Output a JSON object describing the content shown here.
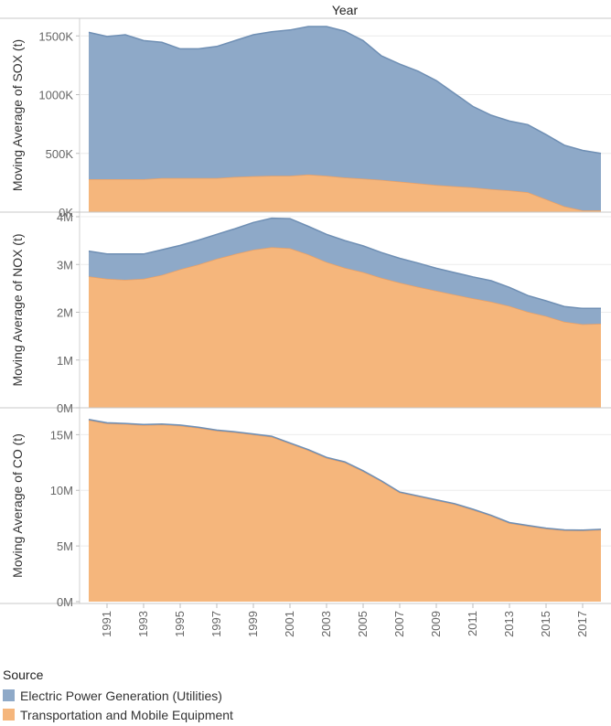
{
  "chart_data": {
    "type": "area",
    "column_title": "Year",
    "x": [
      1990,
      1991,
      1992,
      1993,
      1994,
      1995,
      1996,
      1997,
      1998,
      1999,
      2000,
      2001,
      2002,
      2003,
      2004,
      2005,
      2006,
      2007,
      2008,
      2009,
      2010,
      2011,
      2012,
      2013,
      2014,
      2015,
      2016,
      2017,
      2018
    ],
    "x_tick_labels": [
      "1991",
      "1993",
      "1995",
      "1997",
      "1999",
      "2001",
      "2003",
      "2005",
      "2007",
      "2009",
      "2011",
      "2013",
      "2015",
      "2017"
    ],
    "legend": {
      "title": "Source",
      "placement": "bottom-left",
      "entries": [
        {
          "name": "Electric Power Generation (Utilities)",
          "color": "#8ea9c8"
        },
        {
          "name": "Transportation and Mobile Equipment",
          "color": "#f5b67c"
        }
      ]
    },
    "stacked": true,
    "grid": true,
    "panels": [
      {
        "ylabel": "Moving Average of SOX (t)",
        "ylim": [
          0,
          1650000
        ],
        "y_ticks": [
          0,
          500000,
          1000000,
          1500000
        ],
        "y_tick_labels": [
          "0K",
          "500K",
          "1000K",
          "1500K"
        ],
        "series": [
          {
            "name": "Transportation and Mobile Equipment",
            "values": [
              280000,
              280000,
              280000,
              280000,
              290000,
              290000,
              290000,
              290000,
              300000,
              305000,
              310000,
              310000,
              320000,
              310000,
              295000,
              285000,
              275000,
              260000,
              245000,
              230000,
              220000,
              210000,
              195000,
              185000,
              170000,
              110000,
              50000,
              15000,
              15000
            ]
          },
          {
            "name": "Electric Power Generation (Utilities)",
            "values": [
              1250000,
              1215000,
              1230000,
              1180000,
              1155000,
              1100000,
              1100000,
              1120000,
              1160000,
              1205000,
              1225000,
              1240000,
              1260000,
              1270000,
              1245000,
              1175000,
              1055000,
              1000000,
              955000,
              890000,
              790000,
              690000,
              630000,
              590000,
              575000,
              550000,
              520000,
              510000,
              485000
            ]
          }
        ]
      },
      {
        "ylabel": "Moving Average of NOX (t)",
        "ylim": [
          0,
          4000000
        ],
        "y_ticks": [
          0,
          1000000,
          2000000,
          3000000,
          4000000
        ],
        "y_tick_labels": [
          "0M",
          "1M",
          "2M",
          "3M",
          "4M"
        ],
        "series": [
          {
            "name": "Transportation and Mobile Equipment",
            "values": [
              2750000,
              2700000,
              2680000,
              2700000,
              2780000,
              2900000,
              3000000,
              3120000,
              3220000,
              3310000,
              3360000,
              3340000,
              3210000,
              3050000,
              2930000,
              2840000,
              2720000,
              2620000,
              2530000,
              2450000,
              2370000,
              2290000,
              2220000,
              2130000,
              2010000,
              1920000,
              1800000,
              1750000,
              1760000
            ]
          },
          {
            "name": "Electric Power Generation (Utilities)",
            "values": [
              530000,
              520000,
              540000,
              520000,
              530000,
              500000,
              510000,
              510000,
              530000,
              570000,
              610000,
              620000,
              590000,
              580000,
              570000,
              550000,
              530000,
              510000,
              500000,
              470000,
              460000,
              450000,
              440000,
              390000,
              340000,
              320000,
              320000,
              330000,
              320000
            ]
          }
        ]
      },
      {
        "ylabel": "Moving Average of CO (t)",
        "ylim": [
          0,
          17000000
        ],
        "y_ticks": [
          0,
          5000000,
          10000000,
          15000000
        ],
        "y_tick_labels": [
          "0M",
          "5M",
          "10M",
          "15M"
        ],
        "series": [
          {
            "name": "Transportation and Mobile Equipment",
            "values": [
              16300000,
              16000000,
              15950000,
              15850000,
              15900000,
              15800000,
              15600000,
              15350000,
              15200000,
              15000000,
              14800000,
              14200000,
              13600000,
              12900000,
              12500000,
              11700000,
              10800000,
              9800000,
              9450000,
              9100000,
              8750000,
              8250000,
              7700000,
              7050000,
              6800000,
              6550000,
              6400000,
              6380000,
              6450000
            ]
          },
          {
            "name": "Electric Power Generation (Utilities)",
            "values": [
              60000,
              60000,
              60000,
              60000,
              60000,
              60000,
              60000,
              60000,
              60000,
              60000,
              60000,
              60000,
              60000,
              60000,
              60000,
              60000,
              50000,
              50000,
              50000,
              50000,
              50000,
              50000,
              50000,
              50000,
              50000,
              50000,
              50000,
              50000,
              50000
            ]
          }
        ]
      }
    ]
  }
}
